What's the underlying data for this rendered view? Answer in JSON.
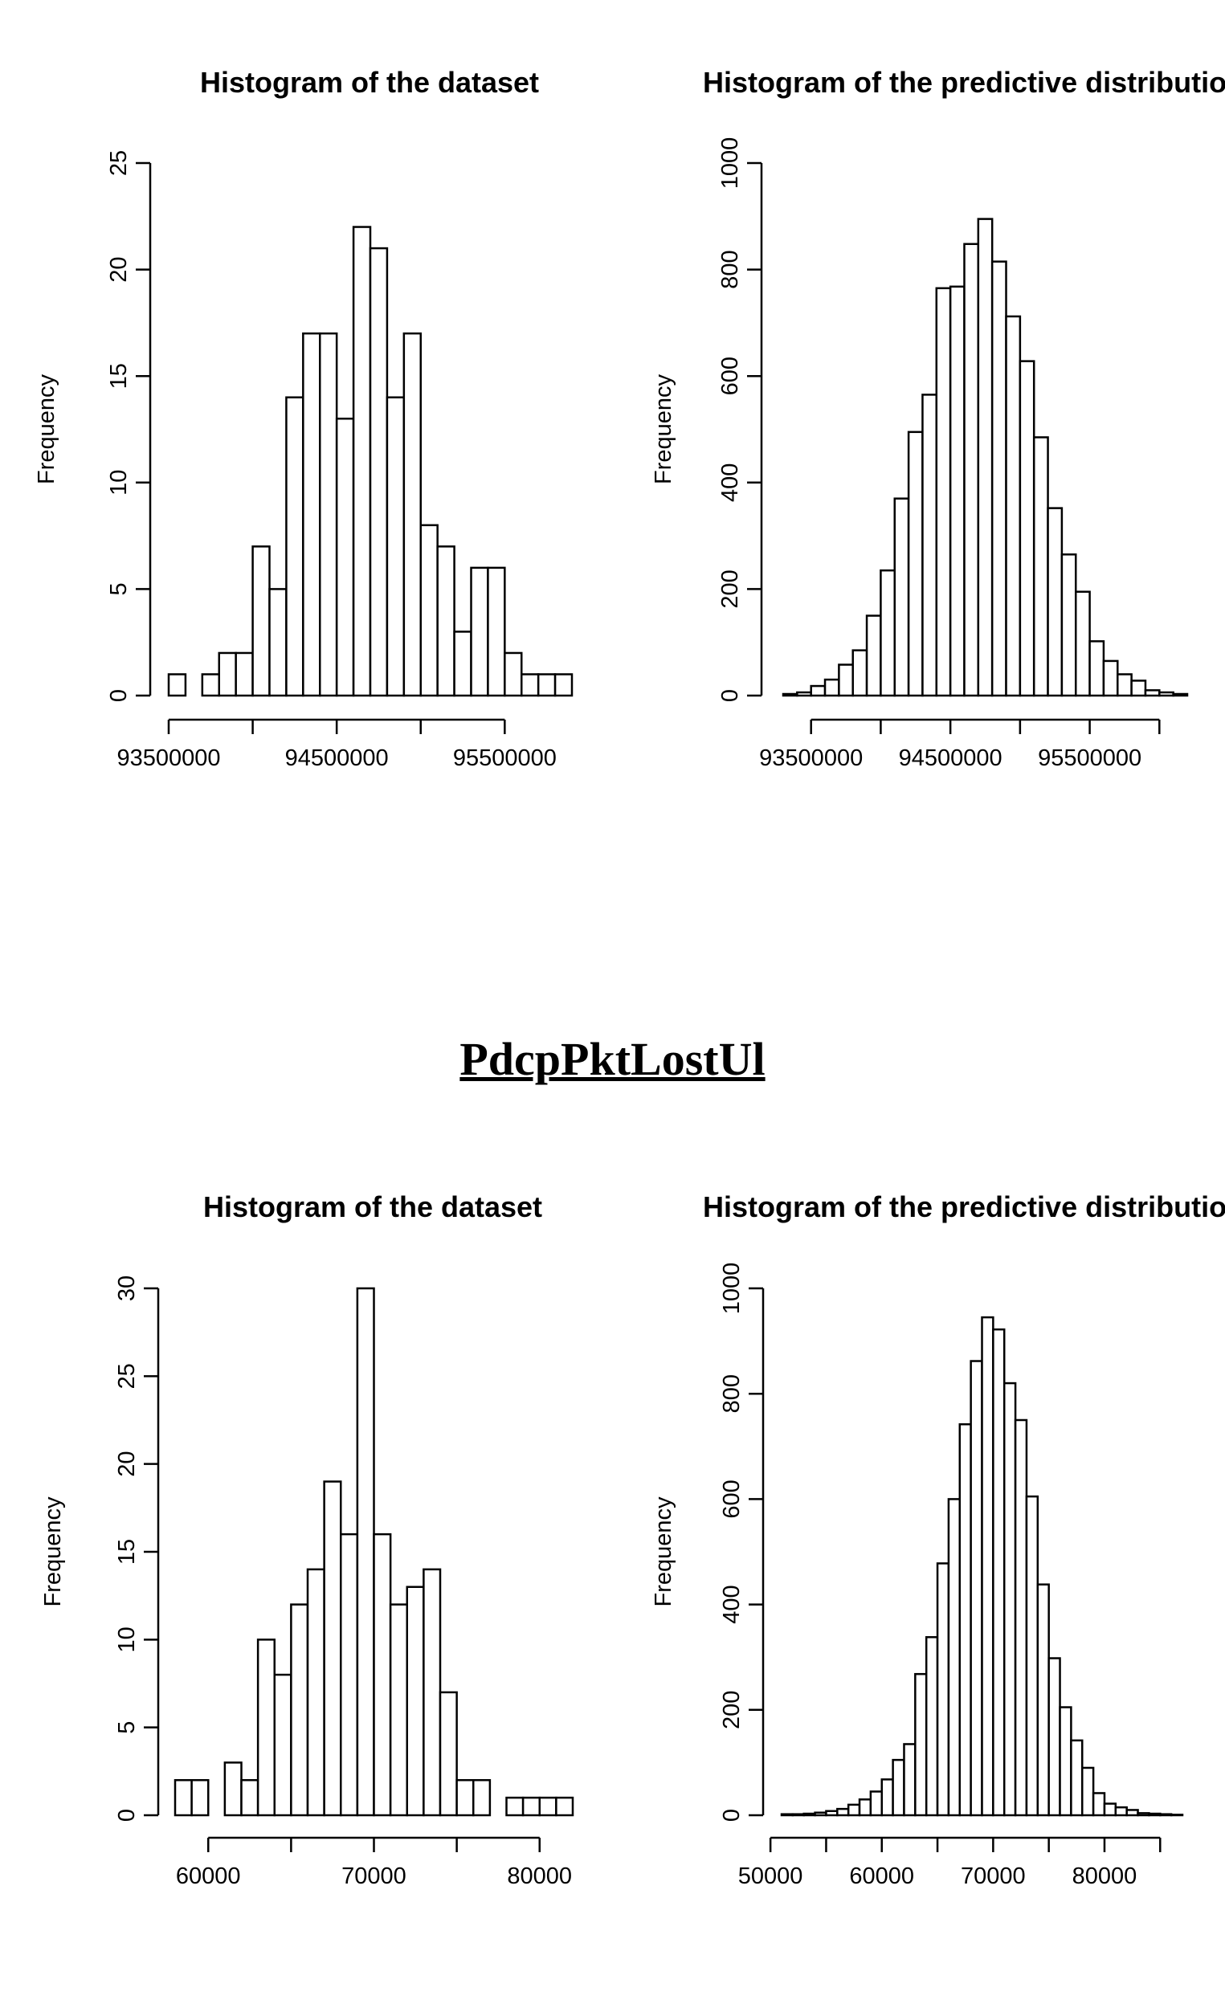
{
  "section_title": "PdcpPktLostUl",
  "chart_data": [
    {
      "type": "bar",
      "title": "Histogram of the dataset",
      "ylabel": "Frequency",
      "xlabel": "",
      "bin_start": 93500000,
      "bin_width": 100000,
      "values": [
        1,
        0,
        1,
        2,
        2,
        7,
        5,
        14,
        17,
        17,
        13,
        22,
        21,
        14,
        17,
        8,
        7,
        3,
        6,
        6,
        2,
        1,
        1,
        1
      ],
      "ylim": [
        0,
        25
      ],
      "yticks": [
        0,
        5,
        10,
        15,
        20,
        25
      ],
      "xticks": [
        93500000,
        94000000,
        94500000,
        95000000,
        95500000
      ],
      "xtick_labels": [
        "93500000",
        "94500000",
        "95500000"
      ],
      "xtick_label_values": [
        93500000,
        94500000,
        95500000
      ],
      "grid": false
    },
    {
      "type": "bar",
      "title": "Histogram of the predictive distributio",
      "ylabel": "Frequency",
      "xlabel": "",
      "bin_start": 93300000,
      "bin_width": 100000,
      "values": [
        3,
        6,
        18,
        30,
        58,
        85,
        150,
        235,
        370,
        495,
        565,
        765,
        768,
        848,
        895,
        815,
        712,
        628,
        485,
        352,
        265,
        195,
        102,
        65,
        40,
        28,
        10,
        6,
        3
      ],
      "ylim": [
        0,
        1000
      ],
      "yticks": [
        0,
        200,
        400,
        600,
        800,
        1000
      ],
      "xticks": [
        93500000,
        94000000,
        94500000,
        95000000,
        95500000,
        96000000
      ],
      "xtick_labels": [
        "93500000",
        "94500000",
        "95500000"
      ],
      "xtick_label_values": [
        93500000,
        94500000,
        95500000
      ],
      "grid": false
    },
    {
      "type": "bar",
      "title": "Histogram of the dataset",
      "ylabel": "Frequency",
      "xlabel": "",
      "bin_start": 58000,
      "bin_width": 1000,
      "values": [
        2,
        2,
        0,
        3,
        2,
        10,
        8,
        12,
        14,
        19,
        16,
        30,
        16,
        12,
        13,
        14,
        7,
        2,
        2,
        0,
        1,
        1,
        1,
        1
      ],
      "ylim": [
        0,
        30
      ],
      "yticks": [
        0,
        5,
        10,
        15,
        20,
        25,
        30
      ],
      "xticks": [
        60000,
        65000,
        70000,
        75000,
        80000
      ],
      "xtick_labels": [
        "60000",
        "70000",
        "80000"
      ],
      "xtick_label_values": [
        60000,
        70000,
        80000
      ],
      "grid": false
    },
    {
      "type": "bar",
      "title": "Histogram of the predictive distributio",
      "ylabel": "Frequency",
      "xlabel": "",
      "bin_start": 51000,
      "bin_width": 1000,
      "values": [
        2,
        2,
        3,
        5,
        8,
        12,
        20,
        30,
        45,
        68,
        105,
        135,
        268,
        338,
        478,
        600,
        742,
        862,
        945,
        922,
        820,
        750,
        605,
        438,
        298,
        205,
        142,
        90,
        42,
        22,
        15,
        10,
        4,
        3,
        2,
        1
      ],
      "ylim": [
        0,
        1000
      ],
      "yticks": [
        0,
        200,
        400,
        600,
        800,
        1000
      ],
      "xticks": [
        50000,
        55000,
        60000,
        65000,
        70000,
        75000,
        80000,
        85000
      ],
      "xtick_labels": [
        "50000",
        "60000",
        "70000",
        "80000"
      ],
      "xtick_label_values": [
        50000,
        60000,
        70000,
        80000
      ],
      "grid": false
    }
  ]
}
